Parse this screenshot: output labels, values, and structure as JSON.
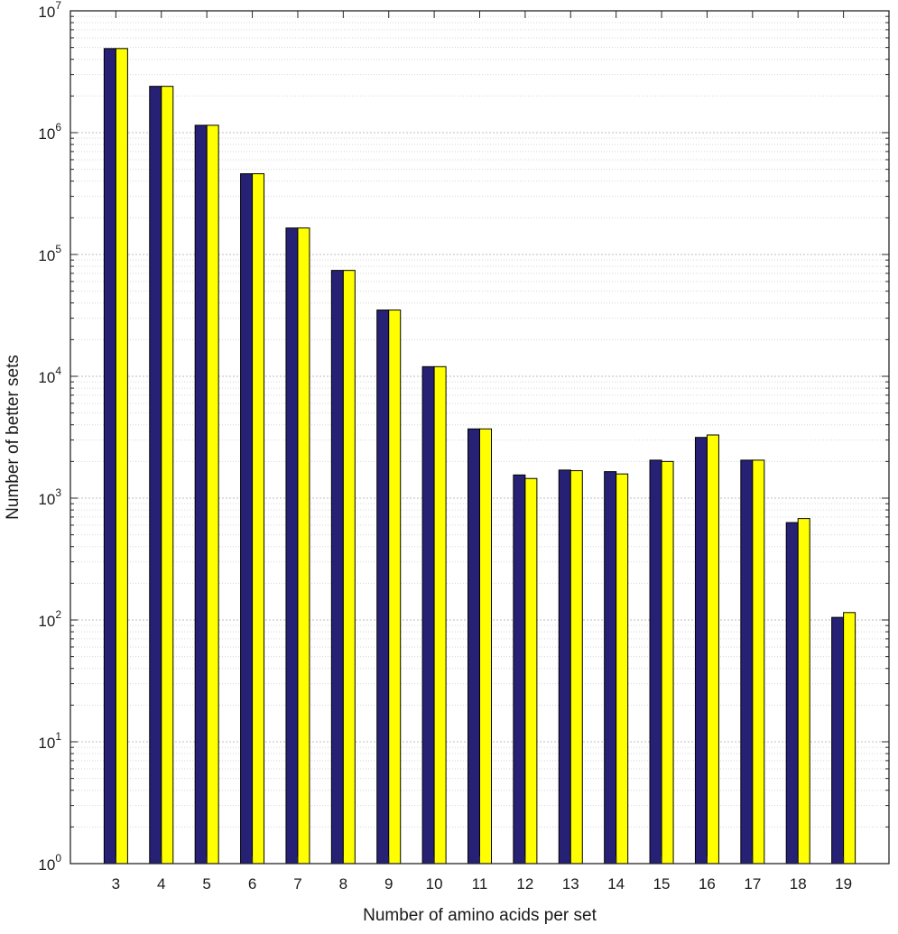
{
  "chart_data": {
    "type": "bar",
    "title": "",
    "xlabel": "Number of amino acids per set",
    "ylabel": "Number of better sets",
    "yscale": "log",
    "ylim": [
      1,
      10000000
    ],
    "y_ticks": [
      {
        "base": "10",
        "exp": "0"
      },
      {
        "base": "10",
        "exp": "1"
      },
      {
        "base": "10",
        "exp": "2"
      },
      {
        "base": "10",
        "exp": "3"
      },
      {
        "base": "10",
        "exp": "4"
      },
      {
        "base": "10",
        "exp": "5"
      },
      {
        "base": "10",
        "exp": "6"
      },
      {
        "base": "10",
        "exp": "7"
      }
    ],
    "grid": true,
    "categories": [
      "3",
      "4",
      "5",
      "6",
      "7",
      "8",
      "9",
      "10",
      "11",
      "12",
      "13",
      "14",
      "15",
      "16",
      "17",
      "18",
      "19"
    ],
    "series": [
      {
        "color": "#262174",
        "values": [
          4900000,
          2400000,
          1150000,
          460000,
          165000,
          74000,
          35000,
          12000,
          3700,
          1550,
          1700,
          1650,
          2050,
          3150,
          2050,
          630,
          105
        ]
      },
      {
        "color": "#ffff00",
        "values": [
          4900000,
          2400000,
          1150000,
          460000,
          165000,
          74000,
          35000,
          12000,
          3700,
          1450,
          1680,
          1580,
          2000,
          3300,
          2050,
          680,
          115
        ]
      }
    ]
  }
}
